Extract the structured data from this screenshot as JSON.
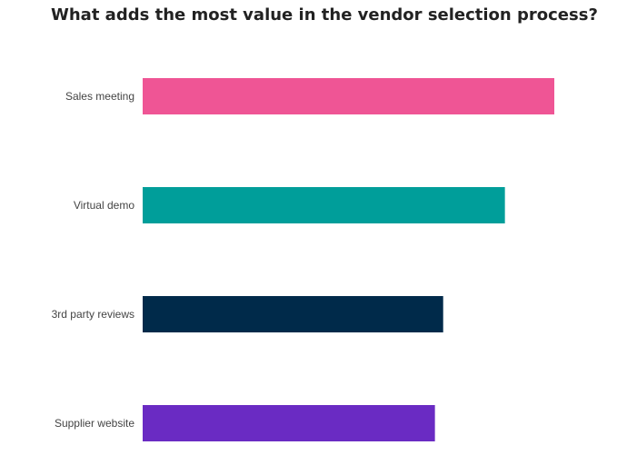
{
  "chart_data": {
    "type": "bar",
    "orientation": "horizontal",
    "title": "What adds the most value in the vendor selection process?",
    "xlabel": "",
    "ylabel": "",
    "categories": [
      "Sales meeting",
      "Virtual demo",
      "3rd party reviews",
      "Supplier website"
    ],
    "values": [
      100,
      88,
      73,
      71
    ],
    "colors": [
      "#ef5595",
      "#009e9a",
      "#002a4a",
      "#6a2bc3"
    ],
    "xlim": [
      0,
      100
    ],
    "grid": false,
    "legend": "none"
  }
}
